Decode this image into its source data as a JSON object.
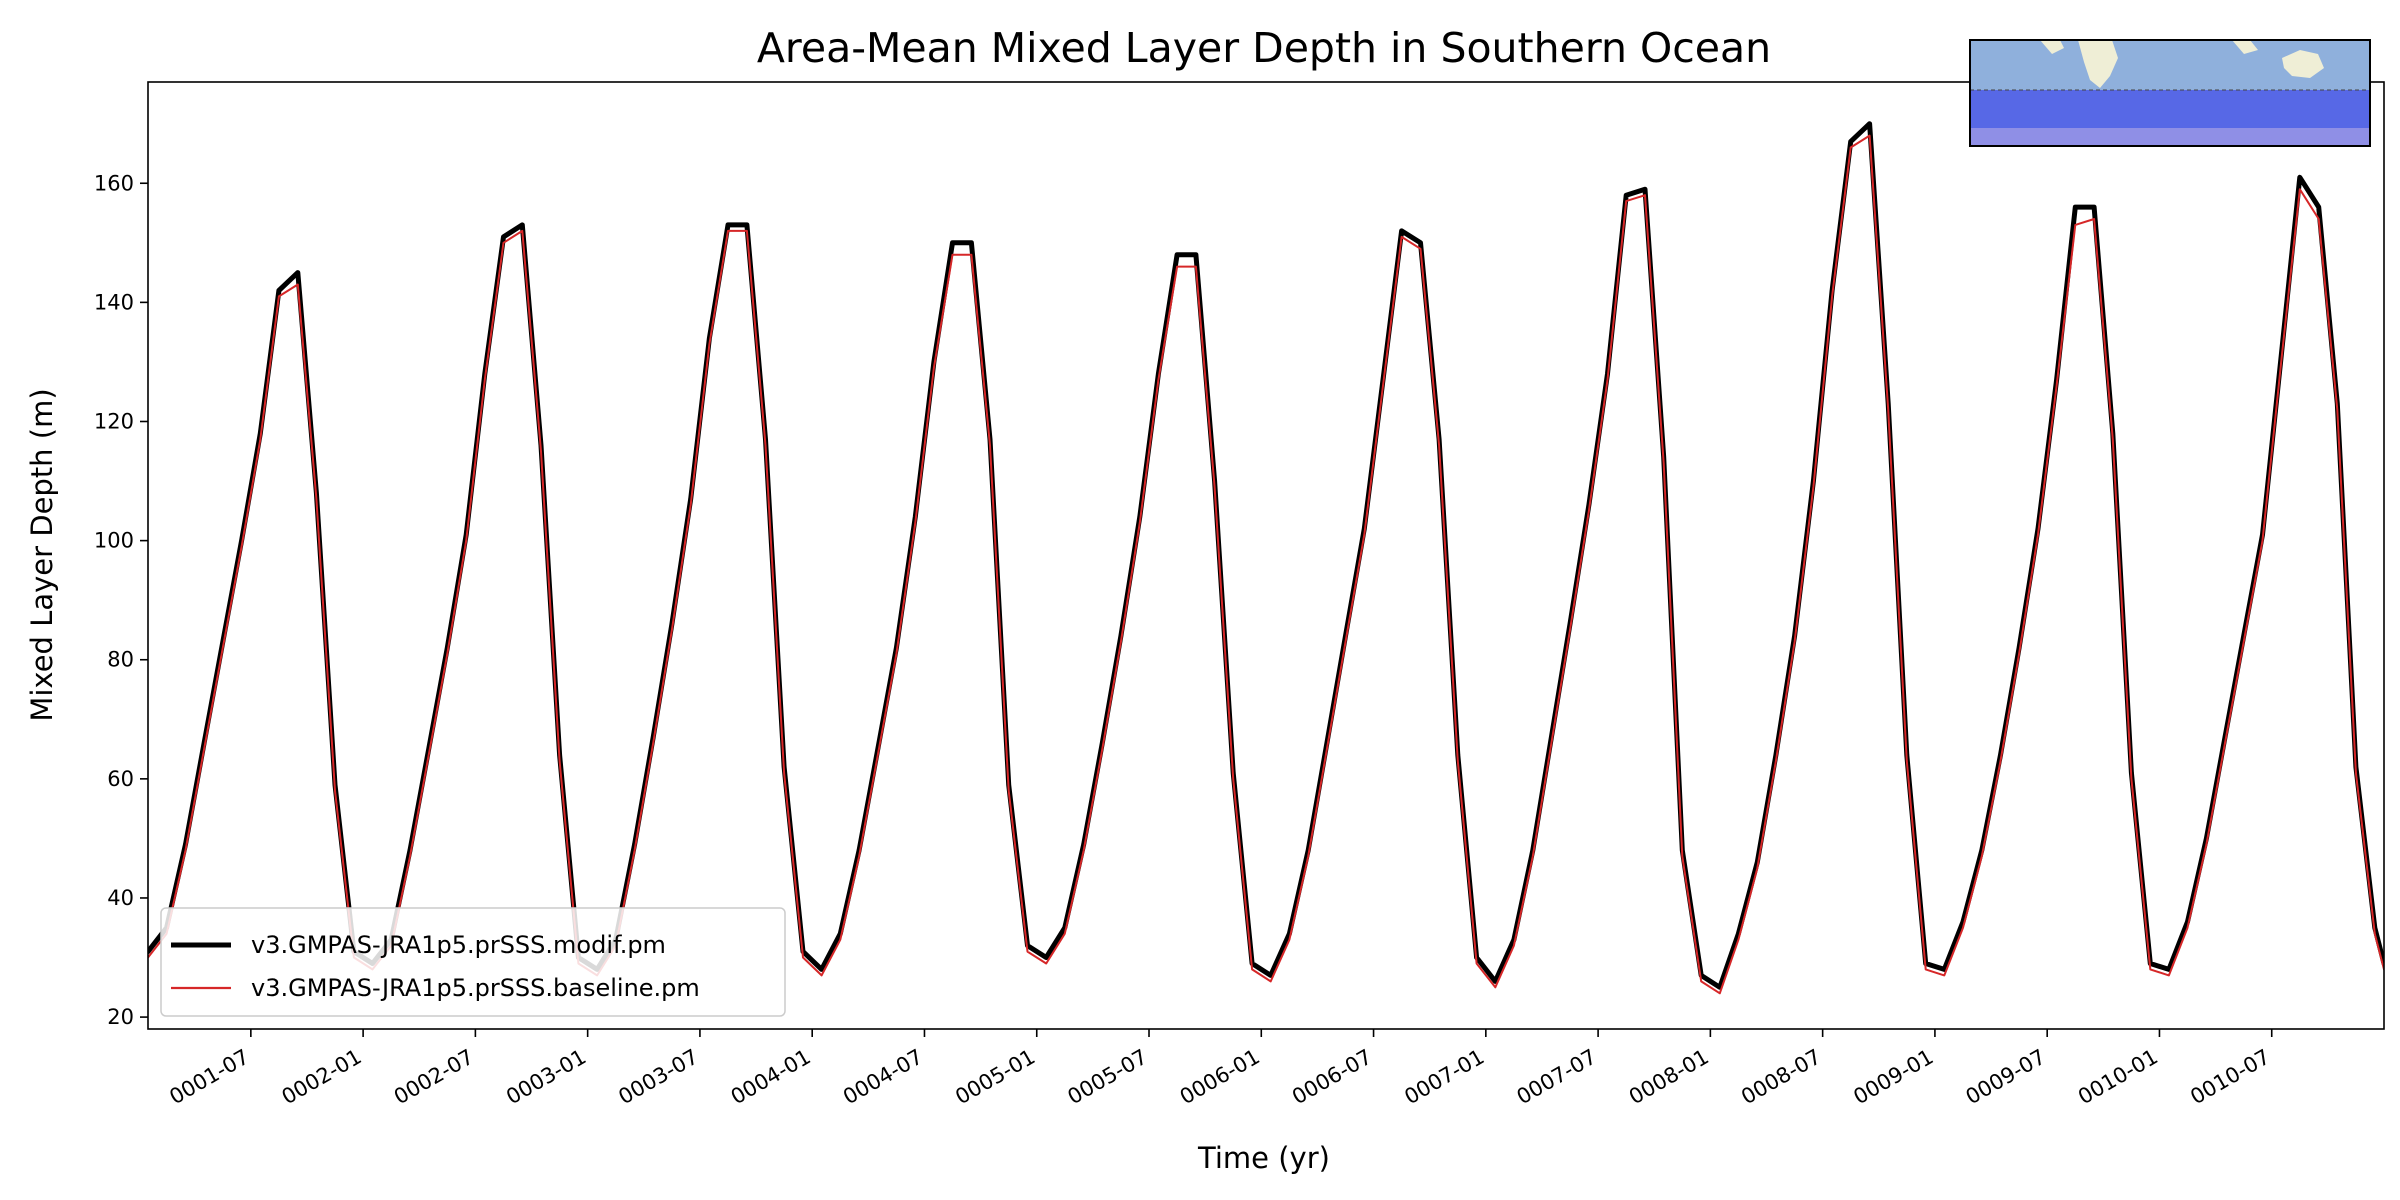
{
  "chart_data": {
    "type": "line",
    "title": "Area-Mean Mixed Layer Depth in Southern Ocean",
    "xlabel": "Time (yr)",
    "ylabel": "Mixed Layer Depth (m)",
    "ylim": [
      18,
      177
    ],
    "yticks": [
      20,
      40,
      60,
      80,
      100,
      120,
      140,
      160
    ],
    "xlim": [
      0.0,
      9.958
    ],
    "xtick_labels": [
      "0001-07",
      "0002-01",
      "0002-07",
      "0003-01",
      "0003-07",
      "0004-01",
      "0004-07",
      "0005-01",
      "0005-07",
      "0006-01",
      "0006-07",
      "0007-01",
      "0007-07",
      "0008-01",
      "0008-07",
      "0009-01",
      "0009-07",
      "0010-01",
      "0010-07"
    ],
    "xtick_positions": [
      0.458,
      0.958,
      1.458,
      1.958,
      2.458,
      2.958,
      3.458,
      3.958,
      4.458,
      4.958,
      5.458,
      5.958,
      6.458,
      6.958,
      7.458,
      7.958,
      8.458,
      8.958,
      9.458
    ],
    "x": [
      0.0,
      0.083,
      0.167,
      0.25,
      0.333,
      0.417,
      0.5,
      0.583,
      0.667,
      0.75,
      0.833,
      0.917,
      1.0,
      1.083,
      1.167,
      1.25,
      1.333,
      1.417,
      1.5,
      1.583,
      1.667,
      1.75,
      1.833,
      1.917,
      2.0,
      2.083,
      2.167,
      2.25,
      2.333,
      2.417,
      2.5,
      2.583,
      2.667,
      2.75,
      2.833,
      2.917,
      3.0,
      3.083,
      3.167,
      3.25,
      3.333,
      3.417,
      3.5,
      3.583,
      3.667,
      3.75,
      3.833,
      3.917,
      4.0,
      4.083,
      4.167,
      4.25,
      4.333,
      4.417,
      4.5,
      4.583,
      4.667,
      4.75,
      4.833,
      4.917,
      5.0,
      5.083,
      5.167,
      5.25,
      5.333,
      5.417,
      5.5,
      5.583,
      5.667,
      5.75,
      5.833,
      5.917,
      6.0,
      6.083,
      6.167,
      6.25,
      6.333,
      6.417,
      6.5,
      6.583,
      6.667,
      6.75,
      6.833,
      6.917,
      7.0,
      7.083,
      7.167,
      7.25,
      7.333,
      7.417,
      7.5,
      7.583,
      7.667,
      7.75,
      7.833,
      7.917,
      8.0,
      8.083,
      8.167,
      8.25,
      8.333,
      8.417,
      8.5,
      8.583,
      8.667,
      8.75,
      8.833,
      8.917,
      9.0,
      9.083,
      9.167,
      9.25,
      9.333,
      9.417,
      9.5,
      9.583,
      9.667,
      9.75,
      9.833,
      9.917,
      9.958
    ],
    "series": [
      {
        "name": "v3.GMPAS-JRA1p5.prSSS.modif.pm",
        "color": "#000000",
        "values": [
          31,
          35,
          49,
          66,
          83,
          100,
          118,
          142,
          145,
          108,
          59,
          31,
          29,
          33,
          48,
          65,
          82,
          101,
          128,
          151,
          153,
          116,
          64,
          30,
          28,
          33,
          49,
          67,
          86,
          107,
          134,
          153,
          153,
          117,
          62,
          31,
          28,
          34,
          48,
          65,
          82,
          104,
          130,
          150,
          150,
          117,
          59,
          32,
          30,
          35,
          49,
          66,
          84,
          104,
          128,
          148,
          148,
          110,
          61,
          29,
          27,
          34,
          48,
          66,
          84,
          102,
          127,
          152,
          150,
          117,
          64,
          30,
          26,
          33,
          48,
          67,
          86,
          106,
          128,
          158,
          159,
          114,
          48,
          27,
          25,
          34,
          46,
          64,
          84,
          110,
          142,
          167,
          170,
          123,
          64,
          29,
          28,
          36,
          48,
          64,
          82,
          102,
          127,
          156,
          156,
          118,
          61,
          29,
          28,
          36,
          50,
          67,
          84,
          101,
          131,
          161,
          156,
          123,
          62,
          35,
          29
        ],
        "width": 5
      },
      {
        "name": "v3.GMPAS-JRA1p5.prSSS.baseline.pm",
        "color": "#d62728",
        "values": [
          30,
          34,
          48,
          65,
          82,
          99,
          117,
          141,
          143,
          107,
          58,
          30,
          28,
          32,
          47,
          64,
          81,
          100,
          127,
          150,
          152,
          115,
          63,
          29,
          27,
          32,
          48,
          66,
          85,
          106,
          133,
          152,
          152,
          116,
          61,
          30,
          27,
          33,
          47,
          64,
          81,
          103,
          129,
          148,
          148,
          116,
          58,
          31,
          29,
          34,
          48,
          65,
          83,
          103,
          127,
          146,
          146,
          109,
          60,
          28,
          26,
          33,
          47,
          65,
          83,
          101,
          126,
          151,
          149,
          116,
          63,
          29,
          25,
          32,
          47,
          66,
          85,
          105,
          127,
          157,
          158,
          113,
          47,
          26,
          24,
          33,
          45,
          63,
          83,
          109,
          141,
          166,
          168,
          122,
          63,
          28,
          27,
          35,
          47,
          63,
          81,
          101,
          126,
          153,
          154,
          117,
          60,
          28,
          27,
          35,
          49,
          66,
          83,
          100,
          130,
          159,
          154,
          122,
          61,
          34,
          28
        ],
        "width": 2
      }
    ],
    "legend": {
      "position": "lower left",
      "entries": [
        "v3.GMPAS-JRA1p5.prSSS.modif.pm",
        "v3.GMPAS-JRA1p5.prSSS.baseline.pm"
      ]
    },
    "inset_map": {
      "position": "top-right",
      "description_colors": {
        "ocean": "#8fb0dc",
        "land": "#efeed6",
        "region": "#5768e6",
        "region_light": "#8f8fe6"
      }
    }
  }
}
